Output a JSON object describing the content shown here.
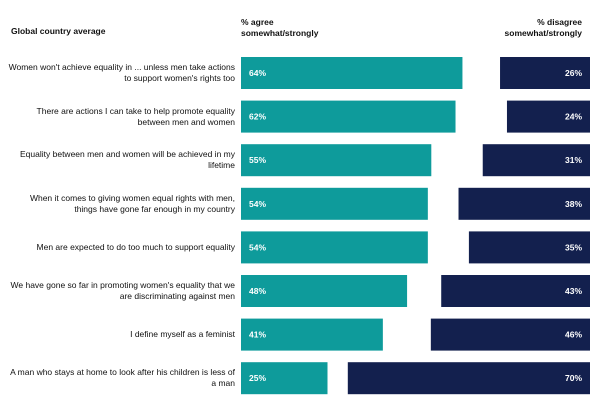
{
  "chart_data": {
    "type": "bar",
    "title": "Global country average",
    "agree_header": "% agree somewhat/strongly",
    "disagree_header": "% disagree somewhat/strongly",
    "categories": [
      "Women won't achieve equality in ... unless men take actions to support women's rights too",
      "There are actions I can take to help promote equality between men and women",
      "Equality between men and women will be achieved in my lifetime",
      "When it comes to giving women equal rights with men, things have gone far enough in my country",
      "Men are expected to do too much to support equality",
      "We have gone so far in promoting women's equality that we are discriminating against men",
      "I define myself as a feminist",
      "A man who stays at home to look after his children is less of a man"
    ],
    "series": [
      {
        "name": "% agree somewhat/strongly",
        "color": "#0e9b9b",
        "values": [
          64,
          62,
          55,
          54,
          54,
          48,
          41,
          25
        ],
        "labels": [
          "64%",
          "62%",
          "55%",
          "54%",
          "54%",
          "48%",
          "41%",
          "25%"
        ]
      },
      {
        "name": "% disagree somewhat/strongly",
        "color": "#13204e",
        "values": [
          26,
          24,
          31,
          38,
          35,
          43,
          46,
          70
        ],
        "labels": [
          "26%",
          "24%",
          "31%",
          "38%",
          "35%",
          "43%",
          "46%",
          "70%"
        ]
      }
    ],
    "xlim": [
      0,
      100
    ],
    "legend": "top"
  }
}
